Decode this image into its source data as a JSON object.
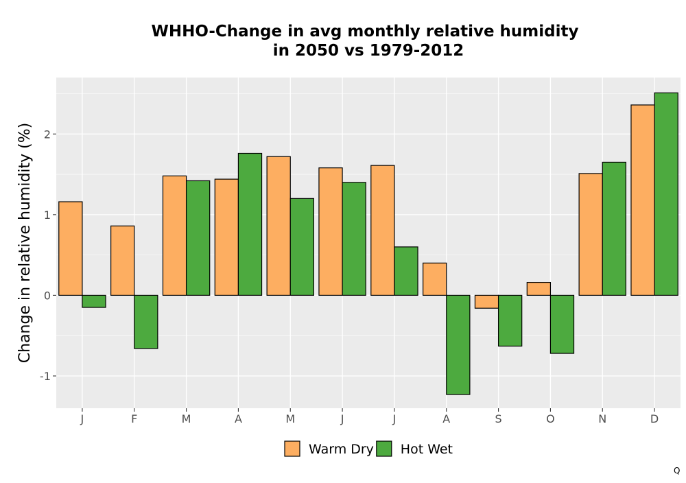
{
  "chart_data": {
    "type": "bar",
    "title_lines": [
      "WHHO-Change in avg monthly relative humidity",
      "in 2050 vs 1979-2012"
    ],
    "xlabel": "",
    "ylabel": "Change in relative humidity (%)",
    "categories": [
      "J",
      "F",
      "M",
      "A",
      "M",
      "J",
      "J",
      "A",
      "S",
      "O",
      "N",
      "D"
    ],
    "series": [
      {
        "name": "Warm Dry",
        "color": "#FDAE61",
        "values": [
          1.16,
          0.86,
          1.48,
          1.44,
          1.72,
          1.58,
          1.61,
          0.4,
          -0.16,
          0.16,
          1.51,
          2.36
        ]
      },
      {
        "name": "Hot Wet",
        "color": "#4DAA3F",
        "values": [
          -0.15,
          -0.66,
          1.42,
          1.76,
          1.2,
          1.4,
          0.6,
          -1.23,
          -0.63,
          -0.72,
          1.65,
          2.51
        ]
      }
    ],
    "ylim": [
      -1.4,
      2.7
    ],
    "yticks": [
      -1,
      0,
      1,
      2
    ],
    "ytick_labels": [
      "-1",
      "0",
      "1",
      "2"
    ],
    "grid": true,
    "legend_position": "bottom",
    "panel_color": "#EBEBEB",
    "grid_color": "#FFFFFF"
  },
  "corner_mark": "Q"
}
